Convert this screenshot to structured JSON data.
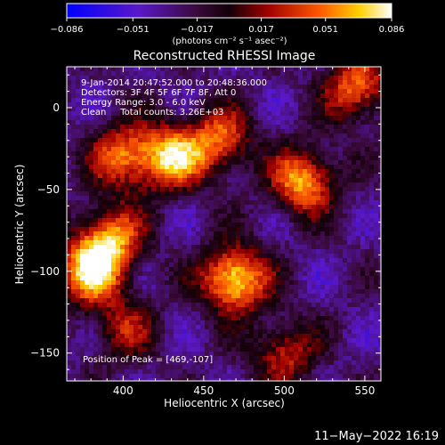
{
  "chart_data": {
    "type": "heatmap",
    "title": "Reconstructed RHESSI Image",
    "xlabel": "Heliocentric X (arcsec)",
    "ylabel": "Heliocentric Y (arcsec)",
    "xlim": [
      365,
      560
    ],
    "ylim": [
      -167,
      25
    ],
    "x_ticks": [
      400,
      450,
      500,
      550
    ],
    "y_ticks": [
      0,
      -50,
      -100,
      -150
    ],
    "x_tick_labels": [
      "400",
      "450",
      "500",
      "550"
    ],
    "y_tick_labels": [
      "0",
      "−50",
      "−100",
      "−150"
    ],
    "colorbar": {
      "min": -0.086,
      "max": 0.086,
      "ticks": [
        -0.086,
        -0.051,
        -0.017,
        0.017,
        0.051,
        0.086
      ],
      "tick_labels": [
        "−0.086",
        "−0.051",
        "−0.017",
        "0.017",
        "0.051",
        "0.086"
      ],
      "unit_label": "(photons cm⁻² s⁻¹ asec⁻²)",
      "colormap": [
        "#0000ff",
        "#6a0dad",
        "#2a0a2a",
        "#8b0000",
        "#ff4500",
        "#ffd700",
        "#ffffff"
      ]
    },
    "annotations": [
      "9-Jan-2014 20:47:52.000 to 20:48:36.000",
      "Detectors: 3F 4F 5F 6F 7F 8F, Att 0",
      "Energy Range: 3.0 - 6.0 keV",
      "Clean     Total counts: 3.26E+03"
    ],
    "peak_label": "Position of Peak = [469,-107]",
    "peak": [
      469,
      -107
    ],
    "bright_sources": [
      {
        "x": 469,
        "y": -105,
        "peak": 0.086
      },
      {
        "x": 380,
        "y": -100,
        "peak": 0.07
      },
      {
        "x": 430,
        "y": -30,
        "peak": 0.065
      },
      {
        "x": 512,
        "y": -45,
        "peak": 0.065
      },
      {
        "x": 392,
        "y": -80,
        "peak": 0.055
      },
      {
        "x": 400,
        "y": -30,
        "peak": 0.05
      },
      {
        "x": 460,
        "y": -20,
        "peak": 0.045
      },
      {
        "x": 545,
        "y": 12,
        "peak": 0.05
      },
      {
        "x": 500,
        "y": -150,
        "peak": 0.03
      },
      {
        "x": 400,
        "y": -135,
        "peak": 0.02
      }
    ]
  },
  "footer": {
    "timestamp": "11−May−2022 16:19"
  }
}
